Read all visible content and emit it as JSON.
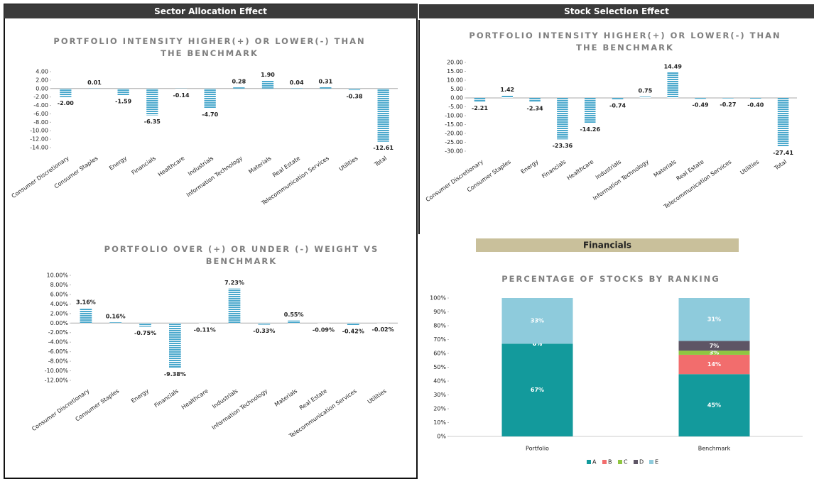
{
  "panels": {
    "left": "Sector Allocation Effect",
    "right": "Stock Selection Effect",
    "section": "Financials"
  },
  "chart_data": [
    {
      "type": "bar",
      "title": "PORTFOLIO INTENSITY HIGHER(+) OR LOWER(-) THAN THE BENCHMARK",
      "color": "#4aa8cc",
      "categories": [
        "Consumer Discretionary",
        "Consumer Staples",
        "Energy",
        "Financials",
        "Healthcare",
        "Industrials",
        "Information Technology",
        "Materials",
        "Real Estate",
        "Telecommunication Services",
        "Utilities",
        "Total"
      ],
      "values": [
        -2.0,
        0.01,
        -1.59,
        -6.35,
        -0.14,
        -4.7,
        0.28,
        1.9,
        0.04,
        0.31,
        -0.38,
        -12.61
      ],
      "value_labels": [
        "-2.00",
        "0.01",
        "-1.59",
        "-6.35",
        "-0.14",
        "-4.70",
        "0.28",
        "1.90",
        "0.04",
        "0.31",
        "-0.38",
        "-12.61"
      ],
      "ylim": [
        -14,
        4
      ],
      "yticks": [
        {
          "value": 4,
          "label": "4.00"
        },
        {
          "value": 2,
          "label": "2.00"
        },
        {
          "value": 0,
          "label": "0.00"
        },
        {
          "value": -2,
          "label": "-2.00"
        },
        {
          "value": -4,
          "label": "-4.00"
        },
        {
          "value": -6,
          "label": "-6.00"
        },
        {
          "value": -8,
          "label": "-8.00"
        },
        {
          "value": -10,
          "label": "-10.00"
        },
        {
          "value": -12,
          "label": "-12.00"
        },
        {
          "value": -14,
          "label": "-14.00"
        }
      ]
    },
    {
      "type": "bar",
      "title": "PORTFOLIO INTENSITY HIGHER(+) OR LOWER(-) THAN THE BENCHMARK",
      "color": "#4aa8cc",
      "categories": [
        "Consumer Discretionary",
        "Consumer Staples",
        "Energy",
        "Financials",
        "Healthcare",
        "Industrials",
        "Information Technology",
        "Materials",
        "Real Estate",
        "Telecommunication Services",
        "Utilities",
        "Total"
      ],
      "values": [
        -2.21,
        1.42,
        -2.34,
        -23.36,
        -14.26,
        -0.74,
        0.75,
        14.49,
        -0.49,
        -0.27,
        -0.4,
        -27.41
      ],
      "value_labels": [
        "-2.21",
        "1.42",
        "-2.34",
        "-23.36",
        "-14.26",
        "-0.74",
        "0.75",
        "14.49",
        "-0.49",
        "-0.27",
        "-0.40",
        "-27.41"
      ],
      "ylim": [
        -30,
        20
      ],
      "yticks": [
        {
          "value": 20,
          "label": "20.00"
        },
        {
          "value": 15,
          "label": "15.00"
        },
        {
          "value": 10,
          "label": "10.00"
        },
        {
          "value": 5,
          "label": "5.00"
        },
        {
          "value": 0,
          "label": "0.00"
        },
        {
          "value": -5,
          "label": "-5.00"
        },
        {
          "value": -10,
          "label": "-10.00"
        },
        {
          "value": -15,
          "label": "-15.00"
        },
        {
          "value": -20,
          "label": "-20.00"
        },
        {
          "value": -25,
          "label": "-25.00"
        },
        {
          "value": -30,
          "label": "-30.00"
        }
      ]
    },
    {
      "type": "bar",
      "title": "PORTFOLIO OVER (+) OR UNDER (-) WEIGHT VS BENCHMARK",
      "color": "#4aa8cc",
      "categories": [
        "Consumer Discretionary",
        "Consumer Staples",
        "Energy",
        "Financials",
        "Healthcare",
        "Industrials",
        "Information Technology",
        "Materials",
        "Real Estate",
        "Telecommunication Services",
        "Utilities"
      ],
      "values": [
        3.16,
        0.16,
        -0.75,
        -9.38,
        -0.11,
        7.23,
        -0.33,
        0.55,
        -0.09,
        -0.42,
        -0.02
      ],
      "value_labels": [
        "3.16%",
        "0.16%",
        "-0.75%",
        "-9.38%",
        "-0.11%",
        "7.23%",
        "-0.33%",
        "0.55%",
        "-0.09%",
        "-0.42%",
        "-0.02%"
      ],
      "ylim": [
        -12,
        10
      ],
      "yticks": [
        {
          "value": 10,
          "label": "10.00%"
        },
        {
          "value": 8,
          "label": "8.00%"
        },
        {
          "value": 6,
          "label": "6.00%"
        },
        {
          "value": 4,
          "label": "4.00%"
        },
        {
          "value": 2,
          "label": "2.00%"
        },
        {
          "value": 0,
          "label": "0.00%"
        },
        {
          "value": -2,
          "label": "-2.00%"
        },
        {
          "value": -4,
          "label": "-4.00%"
        },
        {
          "value": -6,
          "label": "-6.00%"
        },
        {
          "value": -8,
          "label": "-8.00%"
        },
        {
          "value": -10,
          "label": "-10.00%"
        },
        {
          "value": -12,
          "label": "-12.00%"
        }
      ]
    },
    {
      "type": "stacked_bar",
      "title": "PERCENTAGE OF STOCKS BY RANKING",
      "legend": "bottom",
      "categories": [
        "Portfolio",
        "Benchmark"
      ],
      "series": [
        {
          "name": "A",
          "color": "#139a9c",
          "values": [
            67,
            45
          ],
          "value_labels": [
            "67%",
            "45%"
          ]
        },
        {
          "name": "B",
          "color": "#f26d6d",
          "values": [
            0,
            14
          ],
          "value_labels": [
            "0%",
            "14%"
          ]
        },
        {
          "name": "C",
          "color": "#8fc641",
          "values": [
            0,
            3
          ],
          "value_labels": [
            "0%",
            "3%"
          ]
        },
        {
          "name": "D",
          "color": "#5e5565",
          "values": [
            0,
            7
          ],
          "value_labels": [
            "0%",
            "7%"
          ]
        },
        {
          "name": "E",
          "color": "#8ecbdc",
          "values": [
            33,
            31
          ],
          "value_labels": [
            "33%",
            "31%"
          ]
        }
      ],
      "ylim": [
        0,
        100
      ],
      "yticks": [
        {
          "value": 0,
          "label": "0%"
        },
        {
          "value": 10,
          "label": "10%"
        },
        {
          "value": 20,
          "label": "20%"
        },
        {
          "value": 30,
          "label": "30%"
        },
        {
          "value": 40,
          "label": "40%"
        },
        {
          "value": 50,
          "label": "50%"
        },
        {
          "value": 60,
          "label": "60%"
        },
        {
          "value": 70,
          "label": "70%"
        },
        {
          "value": 80,
          "label": "80%"
        },
        {
          "value": 90,
          "label": "90%"
        },
        {
          "value": 100,
          "label": "100%"
        }
      ]
    }
  ]
}
